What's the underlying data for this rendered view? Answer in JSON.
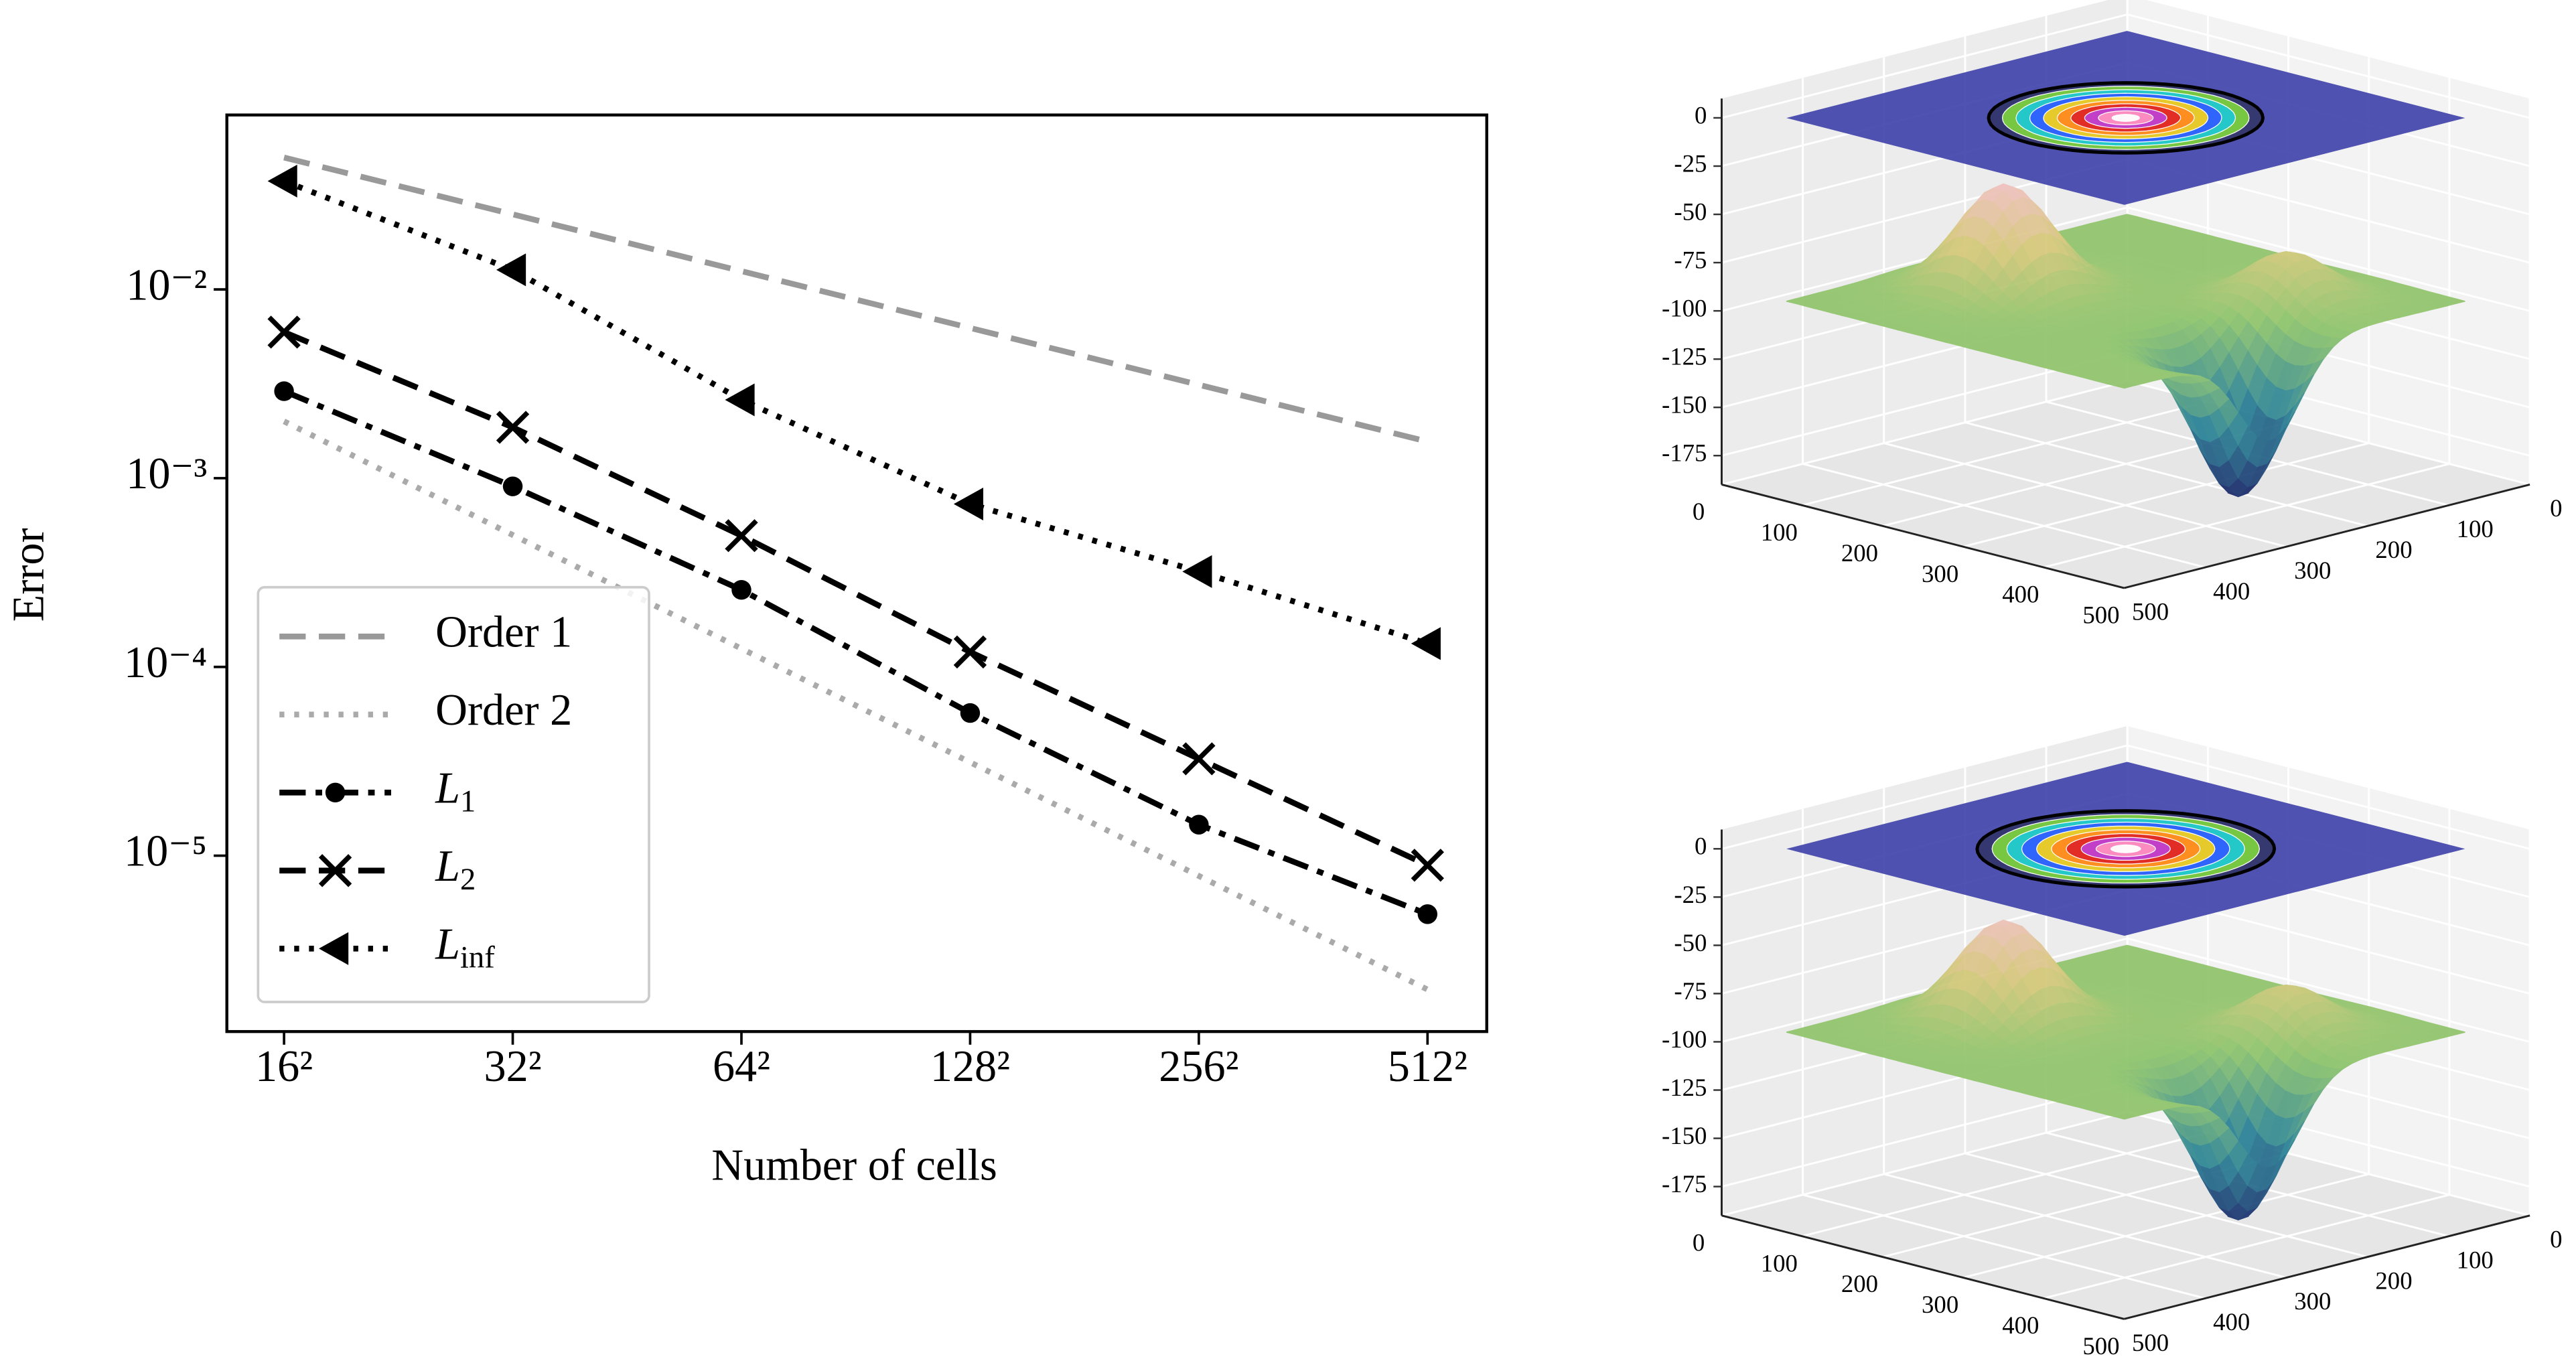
{
  "chart_data": [
    {
      "type": "line",
      "ylabel": "Error",
      "xlabel": "Number of cells",
      "log_x": true,
      "log_y": true,
      "x": [
        256,
        1024,
        4096,
        16384,
        65536,
        262144
      ],
      "xlim": [
        181,
        375400
      ],
      "xticks": [
        {
          "value": 256,
          "label": "16²"
        },
        {
          "value": 1024,
          "label": "32²"
        },
        {
          "value": 4096,
          "label": "64²"
        },
        {
          "value": 16384,
          "label": "128²"
        },
        {
          "value": 65536,
          "label": "256²"
        },
        {
          "value": 262144,
          "label": "512²"
        }
      ],
      "ylim": [
        1.17e-06,
        0.084
      ],
      "yticks": [
        {
          "value": 0.01,
          "label": "10⁻²"
        },
        {
          "value": 0.001,
          "label": "10⁻³"
        },
        {
          "value": 0.0001,
          "label": "10⁻⁴"
        },
        {
          "value": 1e-05,
          "label": "10⁻⁵"
        }
      ],
      "legend": "lower left",
      "series": [
        {
          "name": "Order 1",
          "color": "#999999",
          "dash": "dashed",
          "values": [
            0.05,
            0.025,
            0.0125,
            0.00625,
            0.003125,
            0.0015625
          ]
        },
        {
          "name": "Order 2",
          "color": "#aaaaaa",
          "dash": "dotted",
          "values": [
            0.002,
            0.0005,
            0.000125,
            3.125e-05,
            7.8125e-06,
            1.953e-06
          ]
        },
        {
          "name": "L1",
          "color": "#000000",
          "dash": "dashdot",
          "marker": "circle",
          "values": [
            0.00289,
            0.000905,
            0.000256,
            5.7e-05,
            1.46e-05,
            4.9e-06
          ]
        },
        {
          "name": "L2",
          "color": "#000000",
          "dash": "dashed",
          "marker": "x",
          "values": [
            0.00594,
            0.00186,
            0.000496,
            0.00012,
            3.26e-05,
            8.9e-06
          ]
        },
        {
          "name": "Linf",
          "color": "#000000",
          "dash": "dotted",
          "marker": "triangle-left",
          "values": [
            0.0375,
            0.0127,
            0.0026,
            0.00073,
            0.00032,
            0.000133
          ]
        }
      ]
    },
    {
      "type": "surface3d",
      "xlim": [
        0,
        500
      ],
      "ylim": [
        0,
        500
      ],
      "zlim": [
        -190,
        10
      ],
      "xticks": [
        0,
        100,
        200,
        300,
        400,
        500
      ],
      "yticks": [
        0,
        100,
        200,
        300,
        400,
        500
      ],
      "zticks": [
        0,
        -25,
        -50,
        -75,
        -100,
        -125,
        -150,
        -175
      ]
    },
    {
      "type": "surface3d",
      "xlim": [
        0,
        500
      ],
      "ylim": [
        0,
        500
      ],
      "zlim": [
        -190,
        10
      ],
      "xticks": [
        0,
        100,
        200,
        300,
        400,
        500
      ],
      "yticks": [
        0,
        100,
        200,
        300,
        400,
        500
      ],
      "zticks": [
        0,
        -25,
        -50,
        -75,
        -100,
        -125,
        -150,
        -175
      ]
    }
  ]
}
